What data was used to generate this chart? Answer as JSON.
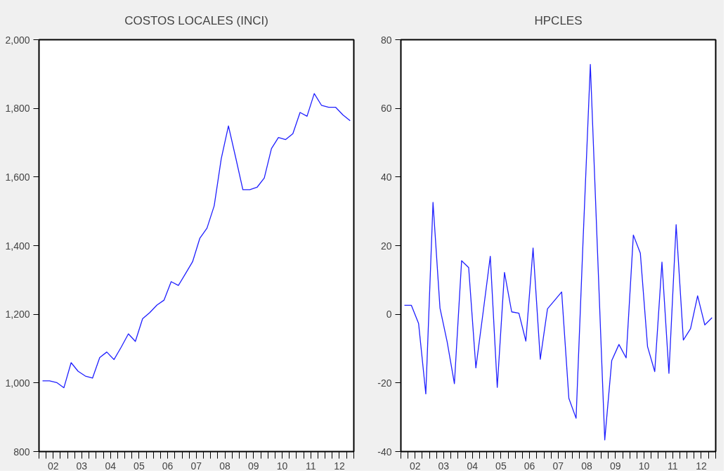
{
  "chart_data": [
    {
      "type": "line",
      "title": "COSTOS LOCALES (INCI)",
      "color": "#1f1fff",
      "x": [
        "2002-02-15",
        "2002-05-15",
        "2002-08-15",
        "2002-11-15",
        "2003-02-15",
        "2003-05-15",
        "2003-08-15",
        "2003-11-15",
        "2004-02-15",
        "2004-05-15",
        "2004-08-15",
        "2004-11-15",
        "2005-02-15",
        "2005-05-15",
        "2005-08-15",
        "2005-11-15",
        "2006-02-15",
        "2006-05-15",
        "2006-08-15",
        "2006-11-15",
        "2007-02-15",
        "2007-05-15",
        "2007-08-15",
        "2007-11-15",
        "2008-02-15",
        "2008-05-15",
        "2008-08-15",
        "2008-11-15",
        "2009-02-15",
        "2009-05-15",
        "2009-08-15",
        "2009-11-15",
        "2010-02-15",
        "2010-05-15",
        "2010-08-15",
        "2010-11-15",
        "2011-02-15",
        "2011-05-15",
        "2011-08-15",
        "2011-11-15",
        "2012-02-15",
        "2012-05-15",
        "2012-08-15",
        "2012-11-15"
      ],
      "values": [
        1006,
        1006,
        1001,
        986,
        1059,
        1034,
        1020,
        1014,
        1074,
        1090,
        1068,
        1104,
        1143,
        1121,
        1187,
        1205,
        1227,
        1241,
        1295,
        1284,
        1319,
        1353,
        1421,
        1451,
        1516,
        1653,
        1749,
        1657,
        1563,
        1563,
        1570,
        1597,
        1683,
        1715,
        1709,
        1726,
        1788,
        1777,
        1843,
        1809,
        1803,
        1803,
        1781,
        1764
      ],
      "xlim": [
        "2002-01-01",
        "2013-01-01"
      ],
      "ylim": [
        800,
        2000
      ],
      "yticks": [
        800,
        {
          "value": 1000,
          "label": "1,000"
        },
        {
          "value": 1200,
          "label": "1,200"
        },
        {
          "value": 1400,
          "label": "1,400"
        },
        {
          "value": 1600,
          "label": "1,600"
        },
        {
          "value": 1800,
          "label": "1,800"
        },
        {
          "value": 2000,
          "label": "2,000"
        }
      ],
      "xticks": [
        {
          "value": "2002-01-01",
          "label": null
        },
        {
          "value": "2002-04-01",
          "label": null
        },
        {
          "value": "2002-07-01",
          "label": "02"
        },
        {
          "value": "2002-10-01",
          "label": null
        },
        {
          "value": "2003-01-01",
          "label": null
        },
        {
          "value": "2003-04-01",
          "label": null
        },
        {
          "value": "2003-07-01",
          "label": "03"
        },
        {
          "value": "2003-10-01",
          "label": null
        },
        {
          "value": "2004-01-01",
          "label": null
        },
        {
          "value": "2004-04-01",
          "label": null
        },
        {
          "value": "2004-07-01",
          "label": "04"
        },
        {
          "value": "2004-10-01",
          "label": null
        },
        {
          "value": "2005-01-01",
          "label": null
        },
        {
          "value": "2005-04-01",
          "label": null
        },
        {
          "value": "2005-07-01",
          "label": "05"
        },
        {
          "value": "2005-10-01",
          "label": null
        },
        {
          "value": "2006-01-01",
          "label": null
        },
        {
          "value": "2006-04-01",
          "label": null
        },
        {
          "value": "2006-07-01",
          "label": "06"
        },
        {
          "value": "2006-10-01",
          "label": null
        },
        {
          "value": "2007-01-01",
          "label": null
        },
        {
          "value": "2007-04-01",
          "label": null
        },
        {
          "value": "2007-07-01",
          "label": "07"
        },
        {
          "value": "2007-10-01",
          "label": null
        },
        {
          "value": "2008-01-01",
          "label": null
        },
        {
          "value": "2008-04-01",
          "label": null
        },
        {
          "value": "2008-07-01",
          "label": "08"
        },
        {
          "value": "2008-10-01",
          "label": null
        },
        {
          "value": "2009-01-01",
          "label": null
        },
        {
          "value": "2009-04-01",
          "label": null
        },
        {
          "value": "2009-07-01",
          "label": "09"
        },
        {
          "value": "2009-10-01",
          "label": null
        },
        {
          "value": "2010-01-01",
          "label": null
        },
        {
          "value": "2010-04-01",
          "label": null
        },
        {
          "value": "2010-07-01",
          "label": "10"
        },
        {
          "value": "2010-10-01",
          "label": null
        },
        {
          "value": "2011-01-01",
          "label": null
        },
        {
          "value": "2011-04-01",
          "label": null
        },
        {
          "value": "2011-07-01",
          "label": "11"
        },
        {
          "value": "2011-10-01",
          "label": null
        },
        {
          "value": "2012-01-01",
          "label": null
        },
        {
          "value": "2012-04-01",
          "label": null
        },
        {
          "value": "2012-07-01",
          "label": "12"
        },
        {
          "value": "2012-10-01",
          "label": null
        },
        {
          "value": "2013-01-01",
          "label": null
        }
      ]
    },
    {
      "type": "line",
      "title": "HPCLES",
      "color": "#1f1fff",
      "x": [
        "2002-02-15",
        "2002-05-15",
        "2002-08-15",
        "2002-11-15",
        "2003-02-15",
        "2003-05-15",
        "2003-08-15",
        "2003-11-15",
        "2004-02-15",
        "2004-05-15",
        "2004-08-15",
        "2004-11-15",
        "2005-02-15",
        "2005-05-15",
        "2005-08-15",
        "2005-11-15",
        "2006-02-15",
        "2006-05-15",
        "2006-08-15",
        "2006-11-15",
        "2007-02-15",
        "2007-05-15",
        "2007-08-15",
        "2007-11-15",
        "2008-02-15",
        "2008-05-15",
        "2008-08-15",
        "2008-11-15",
        "2009-02-15",
        "2009-05-15",
        "2009-08-15",
        "2009-11-15",
        "2010-02-15",
        "2010-05-15",
        "2010-08-15",
        "2010-11-15",
        "2011-02-15",
        "2011-05-15",
        "2011-08-15",
        "2011-11-15",
        "2012-02-15",
        "2012-05-15",
        "2012-08-15",
        "2012-11-15"
      ],
      "values": [
        2.6,
        2.6,
        -2.7,
        -23.2,
        32.6,
        1.8,
        -8.1,
        -20.2,
        15.6,
        13.6,
        -15.6,
        0.5,
        16.9,
        -21.3,
        12.2,
        0.7,
        0.3,
        -7.8,
        19.3,
        -13.1,
        1.6,
        4,
        6.5,
        -24.5,
        -30.3,
        22,
        72.8,
        18,
        -36.6,
        -13.5,
        -8.8,
        -12.7,
        23.1,
        17.8,
        -9.4,
        -16.7,
        15.2,
        -17.2,
        26.1,
        -7.5,
        -4.2,
        5.4,
        -3.1,
        -1.0
      ],
      "xlim": [
        "2002-01-01",
        "2013-01-01"
      ],
      "ylim": [
        -40,
        80
      ],
      "yticks": [
        -40,
        -20,
        0,
        20,
        40,
        60,
        80
      ],
      "xticks": [
        {
          "value": "2002-01-01",
          "label": null
        },
        {
          "value": "2002-04-01",
          "label": null
        },
        {
          "value": "2002-07-01",
          "label": "02"
        },
        {
          "value": "2002-10-01",
          "label": null
        },
        {
          "value": "2003-01-01",
          "label": null
        },
        {
          "value": "2003-04-01",
          "label": null
        },
        {
          "value": "2003-07-01",
          "label": "03"
        },
        {
          "value": "2003-10-01",
          "label": null
        },
        {
          "value": "2004-01-01",
          "label": null
        },
        {
          "value": "2004-04-01",
          "label": null
        },
        {
          "value": "2004-07-01",
          "label": "04"
        },
        {
          "value": "2004-10-01",
          "label": null
        },
        {
          "value": "2005-01-01",
          "label": null
        },
        {
          "value": "2005-04-01",
          "label": null
        },
        {
          "value": "2005-07-01",
          "label": "05"
        },
        {
          "value": "2005-10-01",
          "label": null
        },
        {
          "value": "2006-01-01",
          "label": null
        },
        {
          "value": "2006-04-01",
          "label": null
        },
        {
          "value": "2006-07-01",
          "label": "06"
        },
        {
          "value": "2006-10-01",
          "label": null
        },
        {
          "value": "2007-01-01",
          "label": null
        },
        {
          "value": "2007-04-01",
          "label": null
        },
        {
          "value": "2007-07-01",
          "label": "07"
        },
        {
          "value": "2007-10-01",
          "label": null
        },
        {
          "value": "2008-01-01",
          "label": null
        },
        {
          "value": "2008-04-01",
          "label": null
        },
        {
          "value": "2008-07-01",
          "label": "08"
        },
        {
          "value": "2008-10-01",
          "label": null
        },
        {
          "value": "2009-01-01",
          "label": null
        },
        {
          "value": "2009-04-01",
          "label": null
        },
        {
          "value": "2009-07-01",
          "label": "09"
        },
        {
          "value": "2009-10-01",
          "label": null
        },
        {
          "value": "2010-01-01",
          "label": null
        },
        {
          "value": "2010-04-01",
          "label": null
        },
        {
          "value": "2010-07-01",
          "label": "10"
        },
        {
          "value": "2010-10-01",
          "label": null
        },
        {
          "value": "2011-01-01",
          "label": null
        },
        {
          "value": "2011-04-01",
          "label": null
        },
        {
          "value": "2011-07-01",
          "label": "11"
        },
        {
          "value": "2011-10-01",
          "label": null
        },
        {
          "value": "2012-01-01",
          "label": null
        },
        {
          "value": "2012-04-01",
          "label": null
        },
        {
          "value": "2012-07-01",
          "label": "12"
        },
        {
          "value": "2012-10-01",
          "label": null
        },
        {
          "value": "2013-01-01",
          "label": null
        }
      ]
    }
  ]
}
